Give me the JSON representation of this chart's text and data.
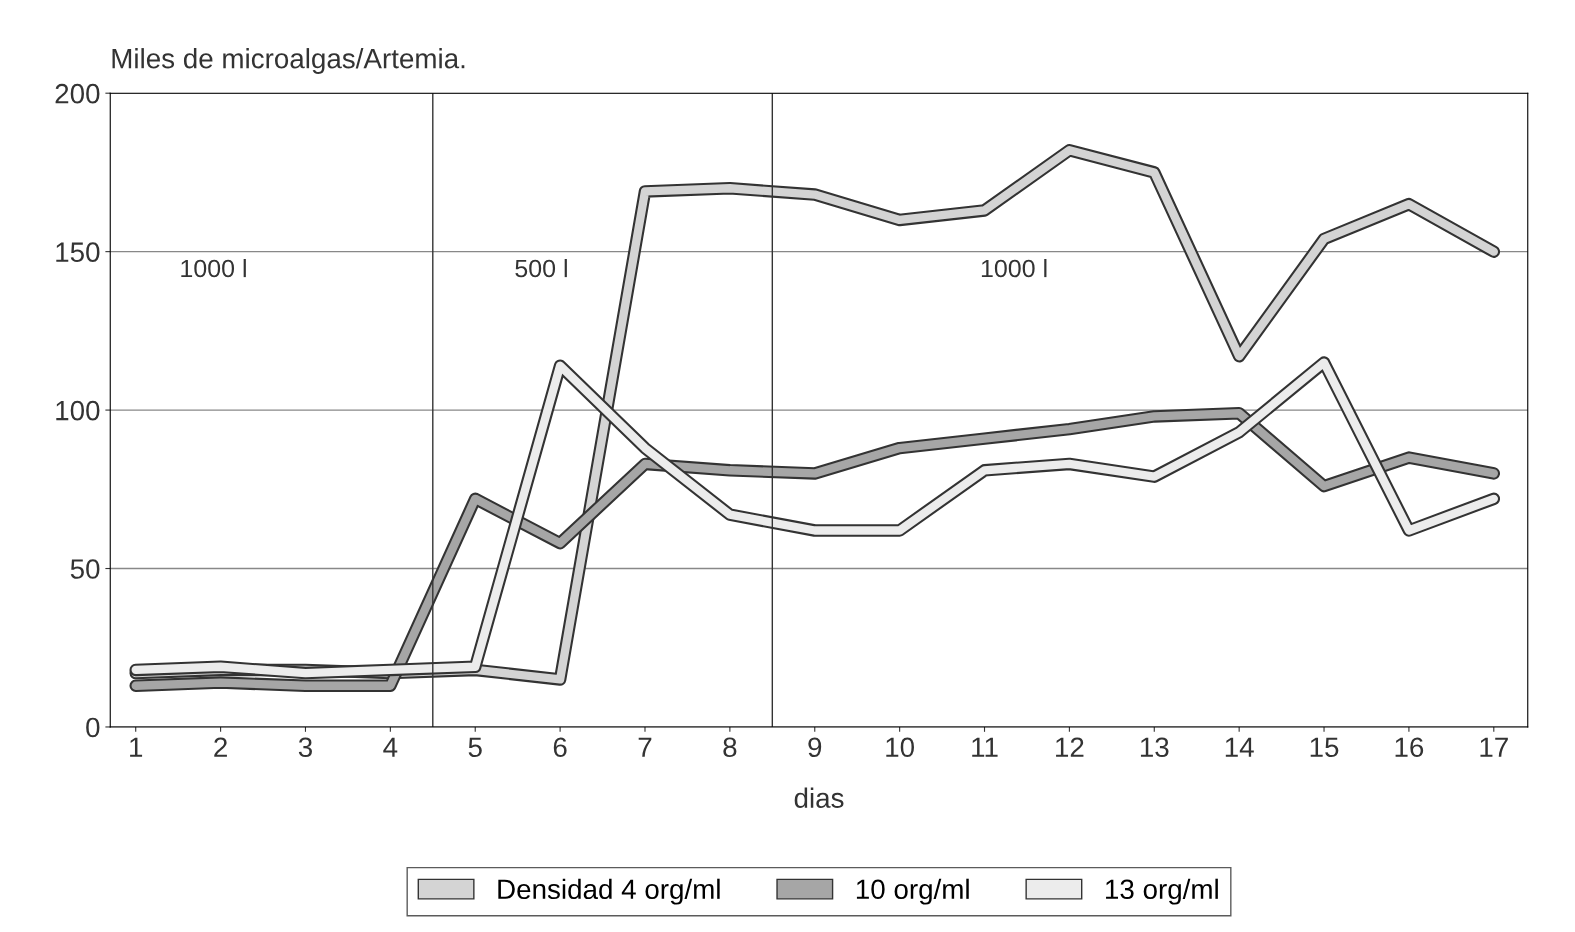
{
  "chart_data": {
    "type": "line",
    "title": "Miles de microalgas/Artemia.",
    "xlabel": "dias",
    "x": [
      1,
      2,
      3,
      4,
      5,
      6,
      7,
      8,
      9,
      10,
      11,
      12,
      13,
      14,
      15,
      16,
      17
    ],
    "series": [
      {
        "name": "Densidad 4 org/ml",
        "color": "#d4d4d4",
        "values": [
          17,
          18,
          18,
          17,
          18,
          15,
          169,
          170,
          168,
          160,
          163,
          182,
          175,
          117,
          154,
          165,
          150
        ]
      },
      {
        "name": "10 org/ml",
        "color": "#a6a6a6",
        "values": [
          13,
          14,
          13,
          13,
          72,
          58,
          83,
          81,
          80,
          88,
          91,
          94,
          98,
          99,
          76,
          85,
          80
        ]
      },
      {
        "name": "13 org/ml",
        "color": "#ececec",
        "values": [
          18,
          19,
          17,
          18,
          19,
          114,
          88,
          67,
          62,
          62,
          81,
          83,
          79,
          93,
          115,
          62,
          72
        ]
      }
    ],
    "xlim": [
      0.7,
      17.4
    ],
    "xticks": [
      1,
      2,
      3,
      4,
      5,
      6,
      7,
      8,
      9,
      10,
      11,
      12,
      13,
      14,
      15,
      16,
      17
    ],
    "ylim": [
      0,
      200
    ],
    "yticks": [
      0,
      50,
      100,
      150,
      200
    ],
    "ref_lines": [
      {
        "axis": "x",
        "value": 4.5,
        "color": "#333333"
      },
      {
        "axis": "x",
        "value": 8.5,
        "color": "#333333"
      }
    ],
    "annotations": [
      "1000 l",
      "500 l",
      "1000 l"
    ],
    "grid": "y",
    "legend": "bottom",
    "marker": "none",
    "line_style": "solid"
  }
}
